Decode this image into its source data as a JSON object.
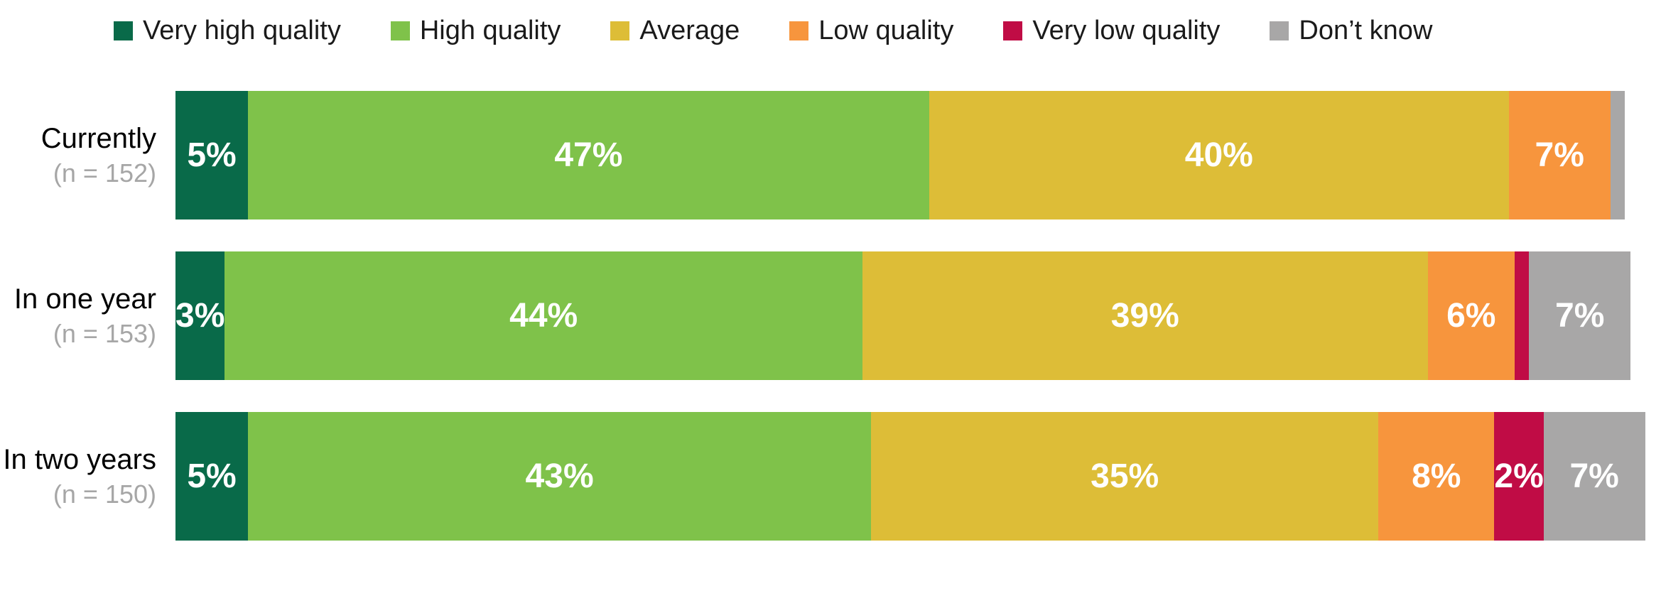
{
  "chart_data": {
    "type": "bar",
    "orientation": "horizontal",
    "stacked": true,
    "unit": "%",
    "xlim": [
      0,
      100
    ],
    "grid": false,
    "legend_position": "top",
    "legend": [
      {
        "label": "Very high quality",
        "color": "#096a49"
      },
      {
        "label": "High quality",
        "color": "#7fc24a"
      },
      {
        "label": "Average",
        "color": "#ddbd37"
      },
      {
        "label": "Low quality",
        "color": "#f7953d"
      },
      {
        "label": "Very low quality",
        "color": "#c00c45"
      },
      {
        "label": "Don’t know",
        "color": "#a8a7a7"
      }
    ],
    "rows": [
      {
        "label": "Currently",
        "n_label": "(n = 152)",
        "values": [
          5,
          47,
          40,
          7,
          0,
          1
        ],
        "display": [
          "5%",
          "47%",
          "40%",
          "7%",
          "",
          ""
        ]
      },
      {
        "label": "In one year",
        "n_label": "(n = 153)",
        "values": [
          3,
          44,
          39,
          6,
          1,
          7
        ],
        "display": [
          "3%",
          "44%",
          "39%",
          "6%",
          "",
          "7%"
        ]
      },
      {
        "label": "In two years",
        "n_label": "(n = 150)",
        "values": [
          5,
          43,
          35,
          8,
          2,
          7
        ],
        "display": [
          "5%",
          "43%",
          "35%",
          "8%",
          "2%",
          "7%"
        ]
      }
    ],
    "text_colors": {
      "segment_label": "#ffffff",
      "row_label": "#000000",
      "n_label": "#a6a6a6",
      "legend_label": "#1a1a1a"
    }
  }
}
